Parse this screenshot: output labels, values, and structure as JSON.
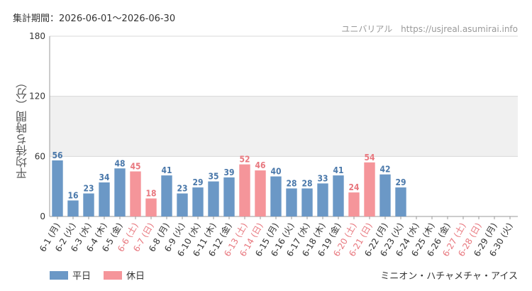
{
  "header": {
    "period_label": "集計期間：2026-06-01～2026-06-30",
    "site_name": "ユニバリアル",
    "site_url": "https://usjreal.asumirai.info"
  },
  "attraction_name": "ミニオン・ハチャメチャ・アイス",
  "legend": {
    "weekday_label": "平日",
    "holiday_label": "休日"
  },
  "colors": {
    "weekday": "#6b98c6",
    "holiday": "#f5959a",
    "weekday_text": "#4a78aa",
    "holiday_text": "#e8777e",
    "band": "#f0f0f0"
  },
  "chart_data": {
    "type": "bar",
    "ylabel": "平均待ち時間（分）",
    "ylim": [
      0,
      180
    ],
    "yticks": [
      0,
      60,
      120,
      180
    ],
    "shaded_band": [
      60,
      120
    ],
    "categories": [
      "6-1 (月)",
      "6-2 (火)",
      "6-3 (水)",
      "6-4 (木)",
      "6-5 (金)",
      "6-6 (土)",
      "6-7 (日)",
      "6-8 (月)",
      "6-9 (火)",
      "6-10 (水)",
      "6-11 (木)",
      "6-12 (金)",
      "6-13 (土)",
      "6-14 (日)",
      "6-15 (月)",
      "6-16 (火)",
      "6-17 (水)",
      "6-18 (木)",
      "6-19 (金)",
      "6-20 (土)",
      "6-21 (日)",
      "6-22 (月)",
      "6-23 (火)",
      "6-24 (水)",
      "6-25 (木)",
      "6-26 (金)",
      "6-27 (土)",
      "6-28 (日)",
      "6-29 (月)",
      "6-30 (火)"
    ],
    "values": [
      56,
      16,
      23,
      34,
      48,
      45,
      18,
      41,
      23,
      29,
      35,
      39,
      52,
      46,
      40,
      28,
      28,
      33,
      41,
      24,
      54,
      42,
      29,
      null,
      null,
      null,
      null,
      null,
      null,
      null
    ],
    "is_holiday": [
      false,
      false,
      false,
      false,
      false,
      true,
      true,
      false,
      false,
      false,
      false,
      false,
      true,
      true,
      false,
      false,
      false,
      false,
      false,
      true,
      true,
      false,
      false,
      false,
      false,
      false,
      true,
      true,
      false,
      false
    ]
  }
}
